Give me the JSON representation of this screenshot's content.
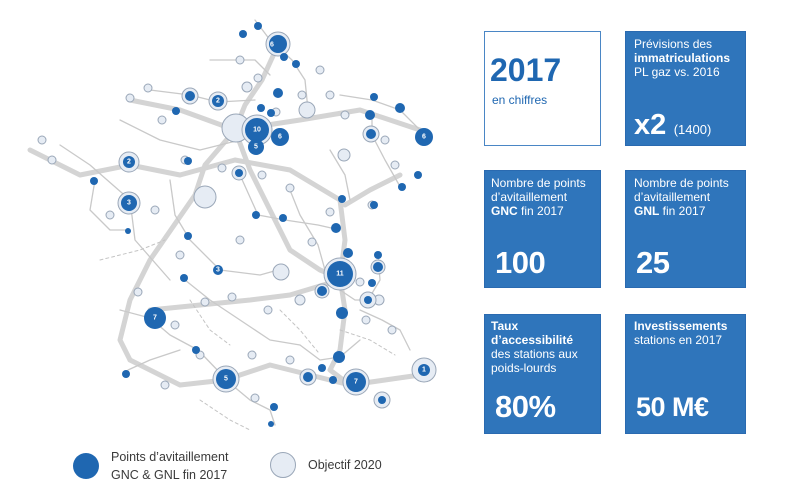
{
  "legend": {
    "points_line1": "Points d’avitaillement",
    "points_line2": "GNC & GNL fin 2017",
    "objective": "Objectif 2020"
  },
  "cards": {
    "year": {
      "big": "2017",
      "sub": "en chiffres"
    },
    "forecast": {
      "line1": "Prévisions des",
      "line2": "immatriculations",
      "line3": "PL gaz vs. 2016",
      "big": "x2",
      "note": "(1400)"
    },
    "gnc": {
      "line1": "Nombre de points",
      "line2": "d’avitaillement",
      "line3_bold": "GNC",
      "line3_rest": " fin 2017",
      "big": "100"
    },
    "gnl": {
      "line1": "Nombre de points",
      "line2": "d’avitaillement",
      "line3_bold": "GNL",
      "line3_rest": " fin 2017",
      "big": "25"
    },
    "access": {
      "line1": "Taux",
      "line2": "d’accessibilité",
      "line3": "des stations aux",
      "line4": "poids-lourds",
      "big": "80%"
    },
    "invest": {
      "line1": "Investissements",
      "line2": "stations en 2017",
      "big": "50 M€"
    }
  },
  "map": {
    "station_counts": [
      "6",
      "10",
      "6",
      "5",
      "2",
      "3",
      "11",
      "7",
      "5",
      "7",
      "6",
      "2",
      "3",
      "1"
    ],
    "colors": {
      "station": "#1f67b1",
      "objective": "#e6ecf4",
      "road": "#d2d2d2",
      "road_minor": "#c8c8c8"
    }
  }
}
